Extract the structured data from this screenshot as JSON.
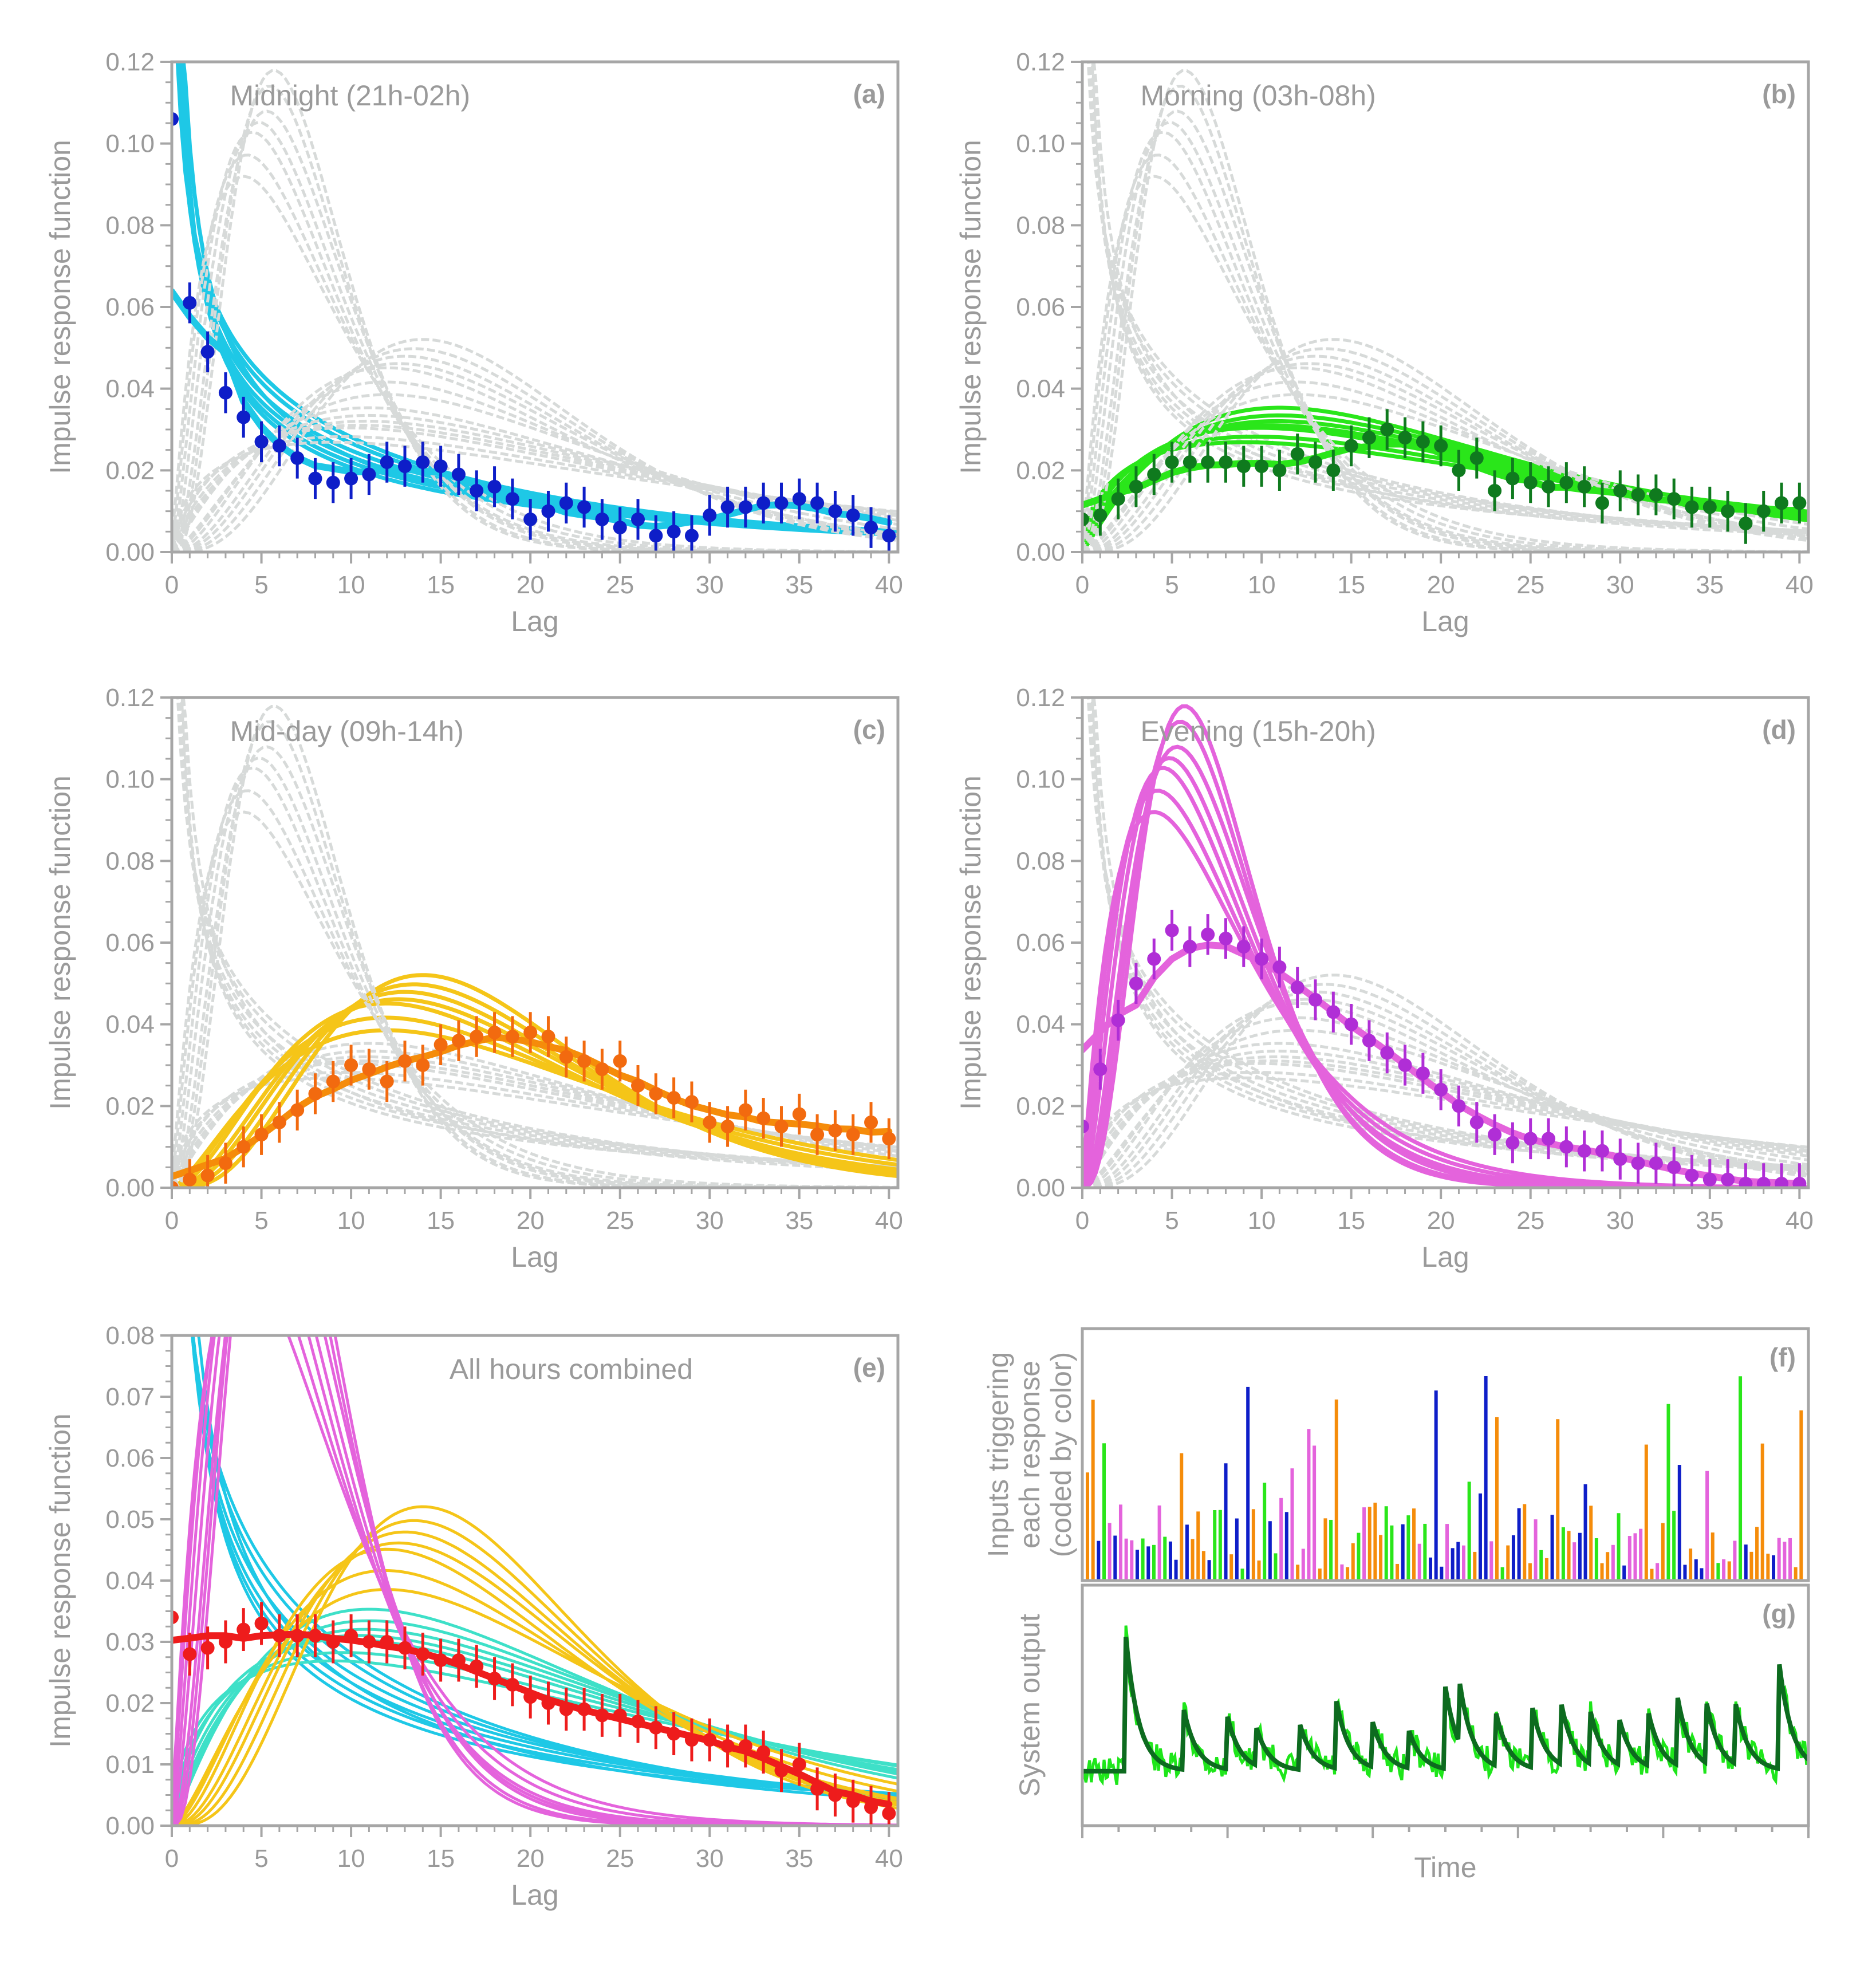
{
  "figure": {
    "time_label": "Time"
  },
  "colors": {
    "axis": "#a6a6a6",
    "text": "#9a9a9a",
    "grey_curve": "#d7dad9",
    "cyan": "#1ec8e6",
    "blue_pts": "#0e1ec8",
    "green_line": "#2ae61a",
    "green_pts": "#0f7a1e",
    "orange_pts": "#f26a0f",
    "yellow": "#f5c518",
    "orange_fit": "#f58c0a",
    "magenta": "#e463dc",
    "purple_pts": "#b02ed6",
    "red": "#ee1c1c",
    "dark_green": "#0d6b1f",
    "bright_green": "#1ee61a"
  },
  "chart_data": [
    {
      "id": "a",
      "type": "line+scatter",
      "title": "Midnight (21h-02h)",
      "label": "(a)",
      "xlabel": "Lag",
      "ylabel": "Impulse response function",
      "xlim": [
        0,
        40.5
      ],
      "ylim": [
        0,
        0.12
      ],
      "xticks": [
        "0",
        "5",
        "10",
        "15",
        "20",
        "25",
        "30",
        "35",
        "40"
      ],
      "yticks": [
        "0.00",
        "0.02",
        "0.04",
        "0.06",
        "0.08",
        "0.10",
        "0.12"
      ],
      "highlight": "cyan",
      "points_x": [
        0,
        1,
        2,
        3,
        4,
        5,
        6,
        7,
        8,
        9,
        10,
        11,
        12,
        13,
        14,
        15,
        16,
        17,
        18,
        19,
        20,
        21,
        22,
        23,
        24,
        25,
        26,
        27,
        28,
        29,
        30,
        31,
        32,
        33,
        34,
        35,
        36,
        37,
        38,
        39,
        40
      ],
      "points_y": [
        0.106,
        0.061,
        0.049,
        0.039,
        0.033,
        0.027,
        0.026,
        0.023,
        0.018,
        0.017,
        0.018,
        0.019,
        0.022,
        0.021,
        0.022,
        0.021,
        0.019,
        0.015,
        0.016,
        0.013,
        0.008,
        0.01,
        0.012,
        0.011,
        0.008,
        0.006,
        0.008,
        0.004,
        0.005,
        0.004,
        0.009,
        0.011,
        0.011,
        0.012,
        0.012,
        0.013,
        0.012,
        0.01,
        0.009,
        0.006,
        0.004
      ],
      "error": 0.005
    },
    {
      "id": "b",
      "type": "line+scatter",
      "title": "Morning (03h-08h)",
      "label": "(b)",
      "xlabel": "Lag",
      "ylabel": "Impulse response function",
      "xlim": [
        0,
        40.5
      ],
      "ylim": [
        0,
        0.12
      ],
      "xticks": [
        "0",
        "5",
        "10",
        "15",
        "20",
        "25",
        "30",
        "35",
        "40"
      ],
      "yticks": [
        "0.00",
        "0.02",
        "0.04",
        "0.06",
        "0.08",
        "0.10",
        "0.12"
      ],
      "highlight": "green",
      "points_x": [
        0,
        1,
        2,
        3,
        4,
        5,
        6,
        7,
        8,
        9,
        10,
        11,
        12,
        13,
        14,
        15,
        16,
        17,
        18,
        19,
        20,
        21,
        22,
        23,
        24,
        25,
        26,
        27,
        28,
        29,
        30,
        31,
        32,
        33,
        34,
        35,
        36,
        37,
        38,
        39,
        40
      ],
      "points_y": [
        0.008,
        0.009,
        0.013,
        0.016,
        0.019,
        0.022,
        0.022,
        0.022,
        0.022,
        0.021,
        0.021,
        0.02,
        0.024,
        0.022,
        0.02,
        0.026,
        0.028,
        0.03,
        0.028,
        0.027,
        0.026,
        0.02,
        0.023,
        0.015,
        0.018,
        0.017,
        0.016,
        0.017,
        0.016,
        0.012,
        0.015,
        0.014,
        0.014,
        0.013,
        0.011,
        0.011,
        0.01,
        0.007,
        0.01,
        0.012,
        0.012
      ],
      "error": 0.005
    },
    {
      "id": "c",
      "type": "line+scatter",
      "title": "Mid-day (09h-14h)",
      "label": "(c)",
      "xlabel": "Lag",
      "ylabel": "Impulse response function",
      "xlim": [
        0,
        40.5
      ],
      "ylim": [
        0,
        0.12
      ],
      "xticks": [
        "0",
        "5",
        "10",
        "15",
        "20",
        "25",
        "30",
        "35",
        "40"
      ],
      "yticks": [
        "0.00",
        "0.02",
        "0.04",
        "0.06",
        "0.08",
        "0.10",
        "0.12"
      ],
      "highlight": "yellow",
      "points_x": [
        0,
        1,
        2,
        3,
        4,
        5,
        6,
        7,
        8,
        9,
        10,
        11,
        12,
        13,
        14,
        15,
        16,
        17,
        18,
        19,
        20,
        21,
        22,
        23,
        24,
        25,
        26,
        27,
        28,
        29,
        30,
        31,
        32,
        33,
        34,
        35,
        36,
        37,
        38,
        39,
        40
      ],
      "points_y": [
        0.0,
        0.002,
        0.003,
        0.006,
        0.01,
        0.013,
        0.016,
        0.019,
        0.023,
        0.026,
        0.03,
        0.029,
        0.026,
        0.031,
        0.03,
        0.035,
        0.036,
        0.037,
        0.038,
        0.037,
        0.038,
        0.037,
        0.032,
        0.031,
        0.029,
        0.031,
        0.025,
        0.023,
        0.022,
        0.021,
        0.016,
        0.015,
        0.019,
        0.017,
        0.015,
        0.018,
        0.013,
        0.014,
        0.013,
        0.016,
        0.012
      ],
      "error": 0.005
    },
    {
      "id": "d",
      "type": "line+scatter",
      "title": "Evening (15h-20h)",
      "label": "(d)",
      "xlabel": "Lag",
      "ylabel": "Impulse response function",
      "xlim": [
        0,
        40.5
      ],
      "ylim": [
        0,
        0.12
      ],
      "xticks": [
        "0",
        "5",
        "10",
        "15",
        "20",
        "25",
        "30",
        "35",
        "40"
      ],
      "yticks": [
        "0.00",
        "0.02",
        "0.04",
        "0.06",
        "0.08",
        "0.10",
        "0.12"
      ],
      "highlight": "magenta",
      "points_x": [
        0,
        1,
        2,
        3,
        4,
        5,
        6,
        7,
        8,
        9,
        10,
        11,
        12,
        13,
        14,
        15,
        16,
        17,
        18,
        19,
        20,
        21,
        22,
        23,
        24,
        25,
        26,
        27,
        28,
        29,
        30,
        31,
        32,
        33,
        34,
        35,
        36,
        37,
        38,
        39,
        40
      ],
      "points_y": [
        0.015,
        0.029,
        0.041,
        0.05,
        0.056,
        0.063,
        0.059,
        0.062,
        0.061,
        0.059,
        0.056,
        0.054,
        0.049,
        0.046,
        0.043,
        0.04,
        0.036,
        0.033,
        0.03,
        0.028,
        0.024,
        0.02,
        0.016,
        0.013,
        0.011,
        0.012,
        0.012,
        0.01,
        0.009,
        0.009,
        0.007,
        0.006,
        0.006,
        0.005,
        0.003,
        0.002,
        0.002,
        0.001,
        0.001,
        0.001,
        0.001
      ],
      "error": 0.005
    },
    {
      "id": "e",
      "type": "line+scatter",
      "title": "All hours combined",
      "label": "(e)",
      "xlabel": "Lag",
      "ylabel": "Impulse response function",
      "xlim": [
        0,
        40.5
      ],
      "ylim": [
        0,
        0.08
      ],
      "xticks": [
        "0",
        "5",
        "10",
        "15",
        "20",
        "25",
        "30",
        "35",
        "40"
      ],
      "yticks": [
        "0.00",
        "0.01",
        "0.02",
        "0.03",
        "0.04",
        "0.05",
        "0.06",
        "0.07",
        "0.08"
      ],
      "highlight": "all",
      "points_x": [
        0,
        1,
        2,
        3,
        4,
        5,
        6,
        7,
        8,
        9,
        10,
        11,
        12,
        13,
        14,
        15,
        16,
        17,
        18,
        19,
        20,
        21,
        22,
        23,
        24,
        25,
        26,
        27,
        28,
        29,
        30,
        31,
        32,
        33,
        34,
        35,
        36,
        37,
        38,
        39,
        40
      ],
      "points_y": [
        0.034,
        0.028,
        0.029,
        0.03,
        0.032,
        0.033,
        0.031,
        0.031,
        0.031,
        0.03,
        0.031,
        0.03,
        0.03,
        0.029,
        0.028,
        0.027,
        0.027,
        0.026,
        0.024,
        0.023,
        0.021,
        0.02,
        0.019,
        0.019,
        0.018,
        0.018,
        0.017,
        0.016,
        0.015,
        0.014,
        0.014,
        0.013,
        0.013,
        0.012,
        0.009,
        0.01,
        0.006,
        0.005,
        0.004,
        0.003,
        0.002
      ],
      "error": 0.0035
    },
    {
      "id": "f",
      "type": "bar",
      "label": "(f)",
      "ylabel_lines": [
        "Inputs triggering",
        "each response",
        "(coded by color)"
      ]
    },
    {
      "id": "g",
      "type": "line",
      "label": "(g)",
      "ylabel": "System output",
      "xlabel": "Time"
    }
  ]
}
